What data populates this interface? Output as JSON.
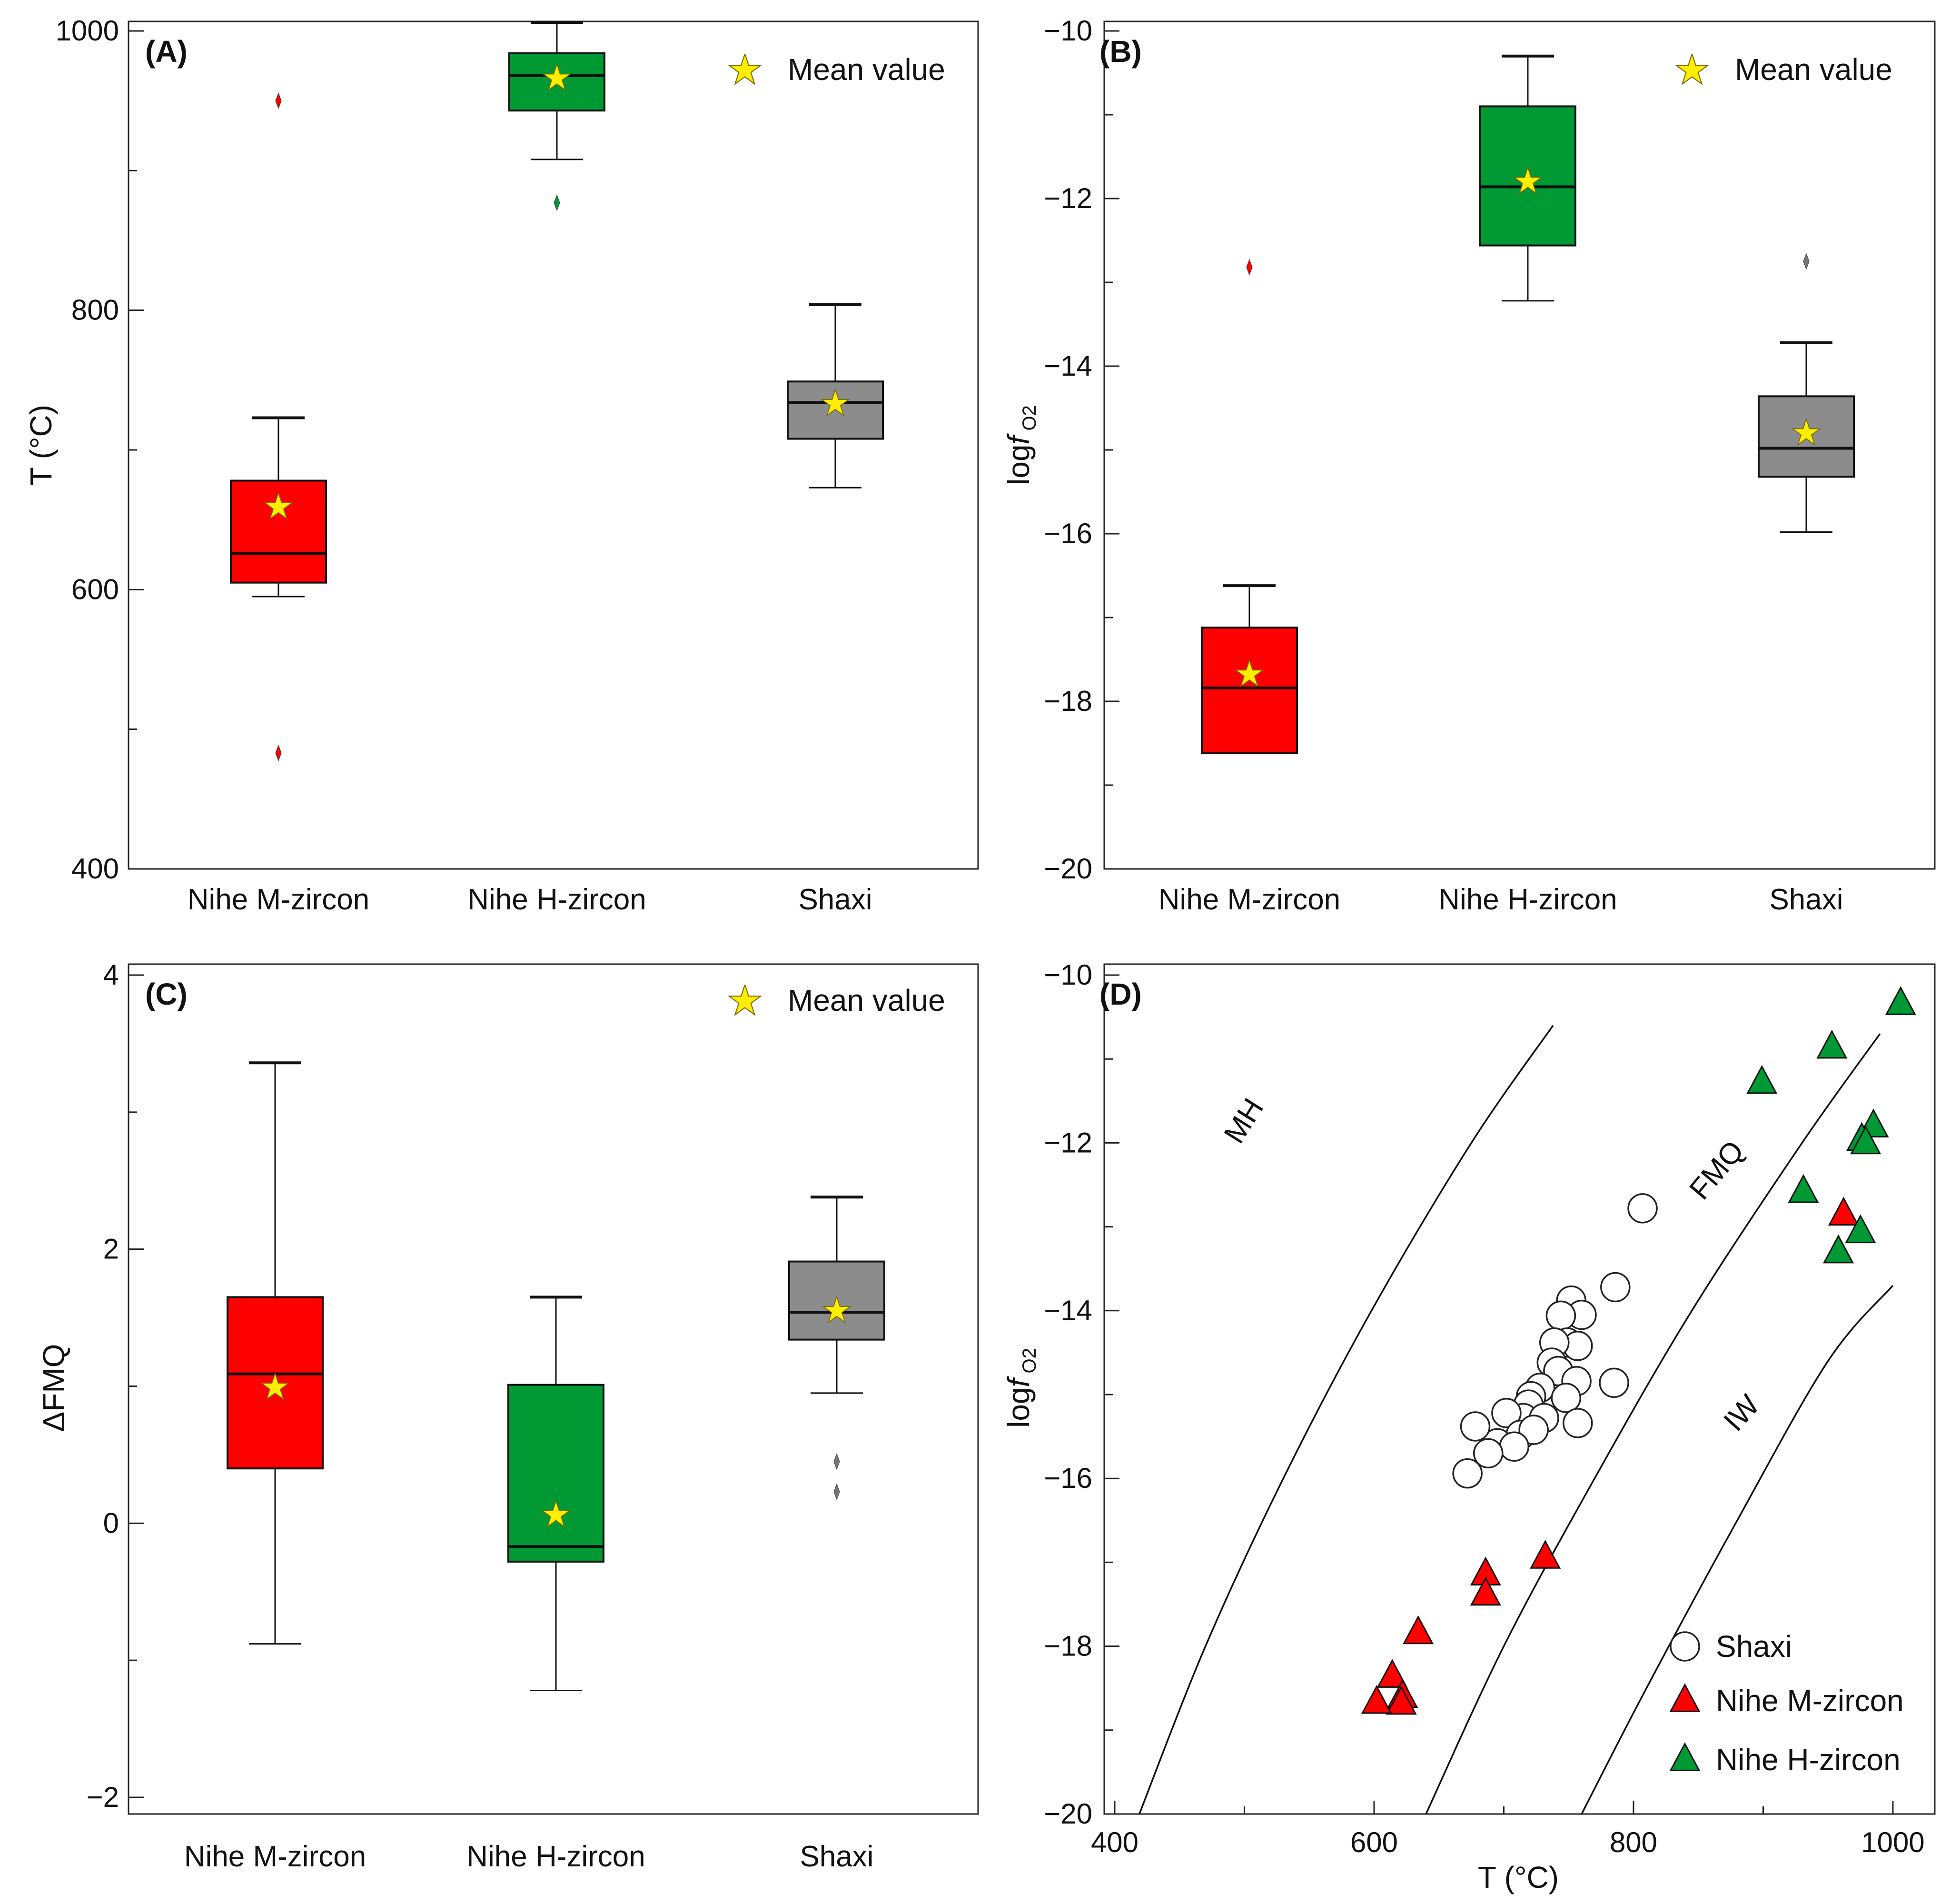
{
  "colors": {
    "m_zircon": "#ff0000",
    "h_zircon": "#009933",
    "shaxi": "#8c8c8c",
    "mean_star": "#ffee00"
  },
  "chart_data": [
    {
      "panel": "(A)",
      "type": "box",
      "categories": [
        "Nihe M-zircon",
        "Nihe H-zircon",
        "Shaxi"
      ],
      "ylabel": "T (°C)",
      "ylim": [
        400,
        1000
      ],
      "yticks_major": [
        400,
        600,
        800,
        1000
      ],
      "yticks_minor": [
        500,
        700,
        900
      ],
      "legend": "Mean value",
      "legend_position": "top-right",
      "boxes": [
        {
          "name": "Nihe M-zircon",
          "whisker_low": 595,
          "q1": 605,
          "median": 626,
          "q3": 678,
          "whisker_high": 723,
          "mean": 659,
          "outliers": [
            950,
            483
          ]
        },
        {
          "name": "Nihe H-zircon",
          "whisker_low": 908,
          "q1": 943,
          "median": 968,
          "q3": 984,
          "whisker_high": 1006,
          "mean": 966,
          "outliers": [
            877
          ]
        },
        {
          "name": "Shaxi",
          "whisker_low": 673,
          "q1": 708,
          "median": 734,
          "q3": 749,
          "whisker_high": 804,
          "mean": 733,
          "outliers": []
        }
      ]
    },
    {
      "panel": "(B)",
      "type": "box",
      "categories": [
        "Nihe M-zircon",
        "Nihe H-zircon",
        "Shaxi"
      ],
      "ylabel": "logf O2",
      "ylim": [
        -20,
        -10
      ],
      "yticks_major": [
        -20,
        -18,
        -16,
        -14,
        -12,
        -10
      ],
      "yticks_minor": [
        -19,
        -17,
        -15,
        -13,
        -11
      ],
      "legend": "Mean value",
      "legend_position": "top-right",
      "boxes": [
        {
          "name": "Nihe M-zircon",
          "whisker_low": -18.62,
          "q1": -18.62,
          "median": -17.84,
          "q3": -17.12,
          "whisker_high": -16.62,
          "mean": -17.68,
          "outliers": [
            -12.82
          ]
        },
        {
          "name": "Nihe H-zircon",
          "whisker_low": -13.22,
          "q1": -12.56,
          "median": -11.86,
          "q3": -10.9,
          "whisker_high": -10.3,
          "mean": -11.8,
          "outliers": []
        },
        {
          "name": "Shaxi",
          "whisker_low": -15.98,
          "q1": -15.32,
          "median": -14.98,
          "q3": -14.36,
          "whisker_high": -13.72,
          "mean": -14.8,
          "outliers": [
            -12.75
          ]
        }
      ]
    },
    {
      "panel": "(C)",
      "type": "box",
      "categories": [
        "Nihe M-zircon",
        "Nihe H-zircon",
        "Shaxi"
      ],
      "ylabel": "ΔFMQ",
      "ylim": [
        -2,
        4
      ],
      "yticks_major": [
        -2,
        0,
        2,
        4
      ],
      "yticks_minor": [
        -1,
        1,
        3
      ],
      "legend": "Mean value",
      "legend_position": "top-right",
      "boxes": [
        {
          "name": "Nihe M-zircon",
          "whisker_low": -0.88,
          "q1": 0.4,
          "median": 1.09,
          "q3": 1.65,
          "whisker_high": 3.36,
          "mean": 0.99,
          "outliers": []
        },
        {
          "name": "Nihe H-zircon",
          "whisker_low": -1.22,
          "q1": -0.28,
          "median": -0.17,
          "q3": 1.01,
          "whisker_high": 1.65,
          "mean": 0.06,
          "outliers": []
        },
        {
          "name": "Shaxi",
          "whisker_low": 0.95,
          "q1": 1.34,
          "median": 1.54,
          "q3": 1.91,
          "whisker_high": 2.38,
          "mean": 1.55,
          "outliers": [
            0.45,
            0.23
          ]
        }
      ]
    },
    {
      "panel": "(D)",
      "type": "scatter",
      "xlabel": "T (°C)",
      "ylabel": "logf O2",
      "xlim": [
        400,
        1000
      ],
      "ylim": [
        -20,
        -10
      ],
      "xticks_major": [
        400,
        600,
        800,
        1000
      ],
      "xticks_minor": [
        500,
        700,
        900
      ],
      "yticks_major": [
        -20,
        -18,
        -16,
        -14,
        -12,
        -10
      ],
      "yticks_minor": [
        -19,
        -17,
        -15,
        -13,
        -11
      ],
      "legend_position": "bottom-right",
      "buffers": [
        {
          "name": "MH",
          "points": [
            [
              419,
              -20
            ],
            [
              470,
              -18
            ],
            [
              530,
              -16
            ],
            [
              598,
              -14
            ],
            [
              675,
              -12
            ],
            [
              738,
              -10.6
            ]
          ],
          "label_at": [
            506,
            -11.8
          ],
          "label_rotation": -58
        },
        {
          "name": "FMQ",
          "points": [
            [
              640,
              -20
            ],
            [
              700,
              -18
            ],
            [
              770,
              -16
            ],
            [
              845,
              -14
            ],
            [
              930,
              -12
            ],
            [
              990,
              -10.7
            ]
          ],
          "label_at": [
            870,
            -12.4
          ],
          "label_rotation": -50
        },
        {
          "name": "IW",
          "points": [
            [
              760,
              -20
            ],
            [
              810,
              -18.5
            ],
            [
              880,
              -16.5
            ],
            [
              950,
              -14.6
            ],
            [
              1000,
              -13.7
            ]
          ],
          "label_at": [
            889,
            -15.3
          ],
          "label_rotation": -48
        }
      ],
      "series": [
        {
          "name": "Shaxi",
          "marker": "circle",
          "points": [
            [
              807,
              -12.78
            ],
            [
              786,
              -13.72
            ],
            [
              752,
              -13.88
            ],
            [
              760,
              -14.05
            ],
            [
              744,
              -14.06
            ],
            [
              749,
              -14.38
            ],
            [
              757,
              -14.42
            ],
            [
              739,
              -14.38
            ],
            [
              737,
              -14.62
            ],
            [
              742,
              -14.72
            ],
            [
              756,
              -14.84
            ],
            [
              728,
              -14.92
            ],
            [
              785,
              -14.86
            ],
            [
              721,
              -15.02
            ],
            [
              748,
              -15.04
            ],
            [
              719,
              -15.12
            ],
            [
              757,
              -15.34
            ],
            [
              715,
              -15.28
            ],
            [
              731,
              -15.28
            ],
            [
              702,
              -15.22
            ],
            [
              713,
              -15.48
            ],
            [
              723,
              -15.42
            ],
            [
              695,
              -15.58
            ],
            [
              708,
              -15.62
            ],
            [
              688,
              -15.7
            ],
            [
              678,
              -15.38
            ],
            [
              672,
              -15.94
            ]
          ]
        },
        {
          "name": "Nihe M-zircon",
          "marker": "triangle",
          "points": [
            [
              962,
              -12.85
            ],
            [
              732,
              -16.94
            ],
            [
              686,
              -17.14
            ],
            [
              686,
              -17.38
            ],
            [
              634,
              -17.84
            ],
            [
              614,
              -18.36
            ],
            [
              622,
              -18.6
            ],
            [
              621,
              -18.68
            ],
            [
              602,
              -18.67
            ]
          ]
        },
        {
          "name": "Nihe H-zircon",
          "marker": "triangle",
          "points": [
            [
              1006,
              -10.34
            ],
            [
              953,
              -10.86
            ],
            [
              899,
              -11.28
            ],
            [
              985,
              -11.8
            ],
            [
              976,
              -11.96
            ],
            [
              979,
              -12.0
            ],
            [
              931,
              -12.58
            ],
            [
              975,
              -13.06
            ],
            [
              958,
              -13.3
            ]
          ]
        }
      ]
    }
  ]
}
